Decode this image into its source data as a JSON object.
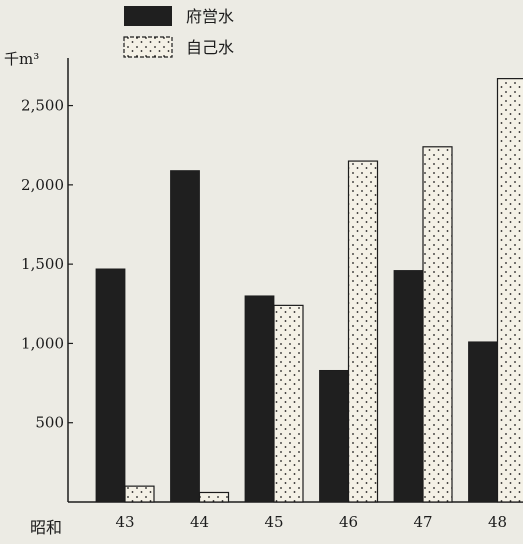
{
  "chart_data": {
    "type": "bar",
    "unit_label": "千m³",
    "era_label": "昭和",
    "categories": [
      "43",
      "44",
      "45",
      "46",
      "47",
      "48"
    ],
    "series": [
      {
        "name": "府営水",
        "values": [
          1470,
          2090,
          1300,
          830,
          1460,
          1010
        ],
        "fill": "#1f1f1f"
      },
      {
        "name": "自己水",
        "values": [
          100,
          60,
          1240,
          2150,
          2240,
          2670
        ],
        "fill": "#f4f1e6"
      }
    ],
    "yticks": [
      500,
      1000,
      1500,
      2000,
      2500
    ],
    "ytick_labels": [
      "500",
      "1,000",
      "1,500",
      "2,000",
      "2,500"
    ],
    "ylim": [
      0,
      2800
    ],
    "grid": false,
    "legend": "top-center"
  }
}
